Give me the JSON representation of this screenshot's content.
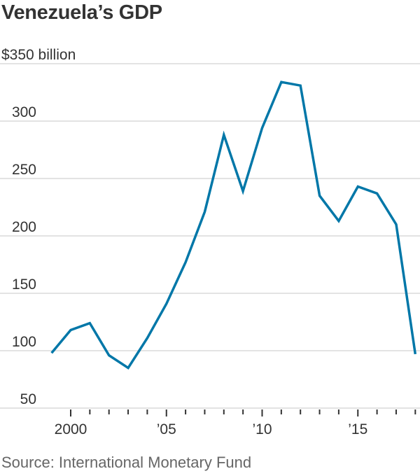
{
  "chart_data": {
    "type": "line",
    "title": "Venezuela’s GDP",
    "source": "Source: International Monetary Fund",
    "xlabel": "",
    "ylabel": "",
    "ylim": [
      50,
      350
    ],
    "xlim": [
      1999,
      2018
    ],
    "grid": true,
    "y_ticks": [
      {
        "value": 350,
        "label": "$350 billion"
      },
      {
        "value": 300,
        "label": "300"
      },
      {
        "value": 250,
        "label": "250"
      },
      {
        "value": 200,
        "label": "200"
      },
      {
        "value": 150,
        "label": "150"
      },
      {
        "value": 100,
        "label": "100"
      },
      {
        "value": 50,
        "label": "50"
      }
    ],
    "x_ticks": [
      {
        "value": 2000,
        "label": "2000"
      },
      {
        "value": 2005,
        "label": "’05"
      },
      {
        "value": 2010,
        "label": "’10"
      },
      {
        "value": 2015,
        "label": "’15"
      }
    ],
    "x_minor_ticks": [
      2000,
      2001,
      2002,
      2003,
      2004,
      2005,
      2006,
      2007,
      2008,
      2009,
      2010,
      2011,
      2012,
      2013,
      2014,
      2015,
      2016,
      2017,
      2018
    ],
    "series": [
      {
        "name": "GDP",
        "color": "#0077a8",
        "x": [
          1999,
          2000,
          2001,
          2002,
          2003,
          2004,
          2005,
          2006,
          2007,
          2008,
          2009,
          2010,
          2011,
          2012,
          2013,
          2014,
          2015,
          2016,
          2017,
          2018
        ],
        "values": [
          98,
          118,
          124,
          96,
          85,
          111,
          141,
          177,
          221,
          288,
          239,
          294,
          334,
          331,
          235,
          213,
          243,
          237,
          210,
          97
        ]
      }
    ]
  },
  "colors": {
    "line": "#0077a8",
    "grid": "#e3e3e3",
    "text": "#333333",
    "source": "#666666"
  }
}
